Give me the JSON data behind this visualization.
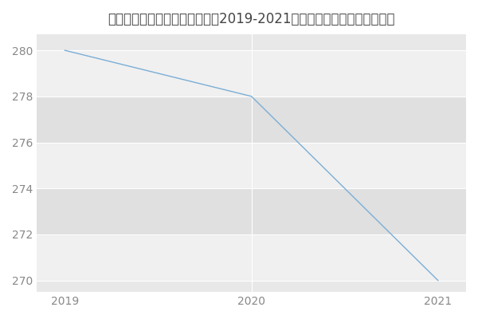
{
  "title": "内蒙古工业大学理学院统计学（2019-2021历年复试）研究生录取分数线",
  "x": [
    2019,
    2020,
    2021
  ],
  "y": [
    280,
    278,
    270
  ],
  "line_color": "#7aaed6",
  "background_color": "#ffffff",
  "plot_bg_color": "#e8e8e8",
  "band_color_light": "#f0f0f0",
  "band_color_dark": "#e0e0e0",
  "grid_color": "#ffffff",
  "xlim": [
    2018.85,
    2021.15
  ],
  "ylim": [
    269.5,
    280.7
  ],
  "yticks": [
    270,
    272,
    274,
    276,
    278,
    280
  ],
  "xticks": [
    2019,
    2020,
    2021
  ],
  "title_fontsize": 12,
  "tick_fontsize": 10,
  "tick_color": "#888888"
}
